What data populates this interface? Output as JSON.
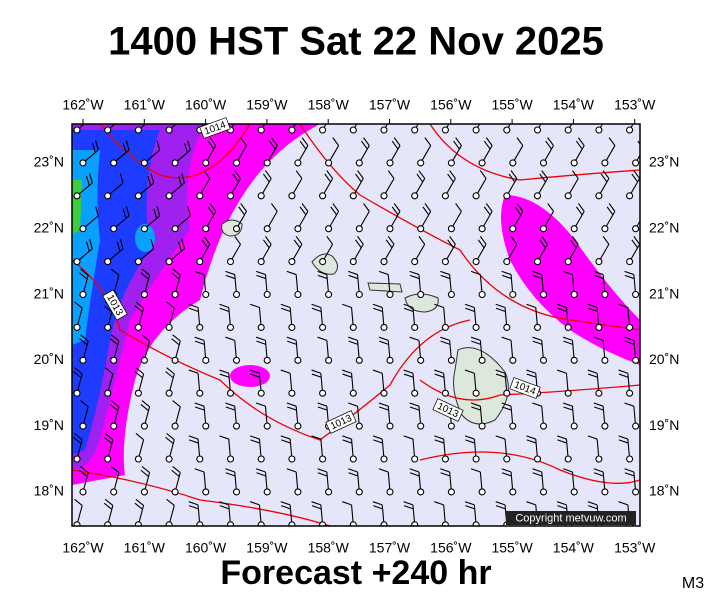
{
  "header": {
    "title": "1400 HST Sat 22 Nov 2025"
  },
  "footer": {
    "forecast": "Forecast +240 hr",
    "model": "M3"
  },
  "map": {
    "lon_labels": [
      "162˚W",
      "161˚W",
      "160˚W",
      "159˚W",
      "158˚W",
      "157˚W",
      "156˚W",
      "155˚W",
      "154˚W",
      "153˚W"
    ],
    "lat_labels": [
      "23˚N",
      "22˚N",
      "21˚N",
      "20˚N",
      "19˚N",
      "18˚N"
    ],
    "contour_labels": [
      "1014",
      "1013",
      "1013",
      "1014",
      "1013"
    ],
    "copyright": "Copyright metvuw.com"
  }
}
